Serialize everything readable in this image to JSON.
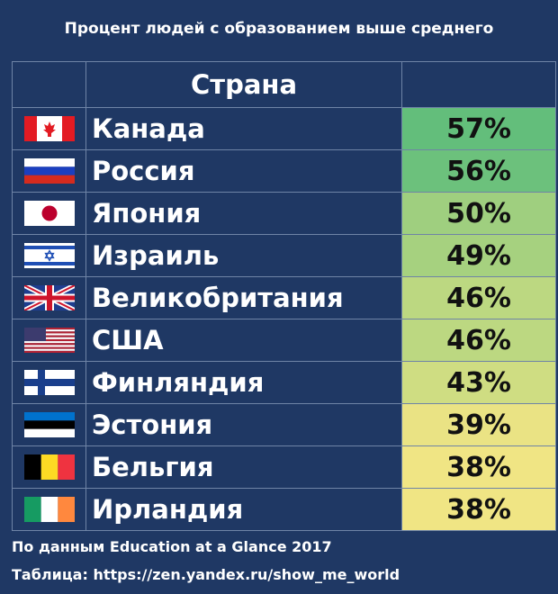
{
  "title": "Процент людей с образованием выше среднего",
  "header": {
    "flag": "",
    "country": "Страна",
    "value": ""
  },
  "chart_data": {
    "type": "table",
    "columns": [
      "Страна",
      ""
    ],
    "rows": [
      {
        "country": "Канада",
        "value": 57,
        "label": "57%",
        "flag": "canada-flag",
        "color": "#63be7b"
      },
      {
        "country": "Россия",
        "value": 56,
        "label": "56%",
        "flag": "russia-flag",
        "color": "#6cc17c"
      },
      {
        "country": "Япония",
        "value": 50,
        "label": "50%",
        "flag": "japan-flag",
        "color": "#9fcf7f"
      },
      {
        "country": "Израиль",
        "value": 49,
        "label": "49%",
        "flag": "israel-flag",
        "color": "#a6d17f"
      },
      {
        "country": "Великобритания",
        "value": 46,
        "label": "46%",
        "flag": "uk-flag",
        "color": "#bcd881"
      },
      {
        "country": "США",
        "value": 46,
        "label": "46%",
        "flag": "usa-flag",
        "color": "#bcd881"
      },
      {
        "country": "Финляндия",
        "value": 43,
        "label": "43%",
        "flag": "finland-flag",
        "color": "#cfdd82"
      },
      {
        "country": "Эстония",
        "value": 39,
        "label": "39%",
        "flag": "estonia-flag",
        "color": "#eae384"
      },
      {
        "country": "Бельгия",
        "value": 38,
        "label": "38%",
        "flag": "belgium-flag",
        "color": "#f0e584"
      },
      {
        "country": "Ирландия",
        "value": 38,
        "label": "38%",
        "flag": "ireland-flag",
        "color": "#f0e584"
      }
    ]
  },
  "footer": {
    "source": "По данным Education at a Glance 2017",
    "credit": "Таблица: https://zen.yandex.ru/show_me_world"
  },
  "colors": {
    "background": "#1f3864",
    "grid": "#6f84a6"
  }
}
